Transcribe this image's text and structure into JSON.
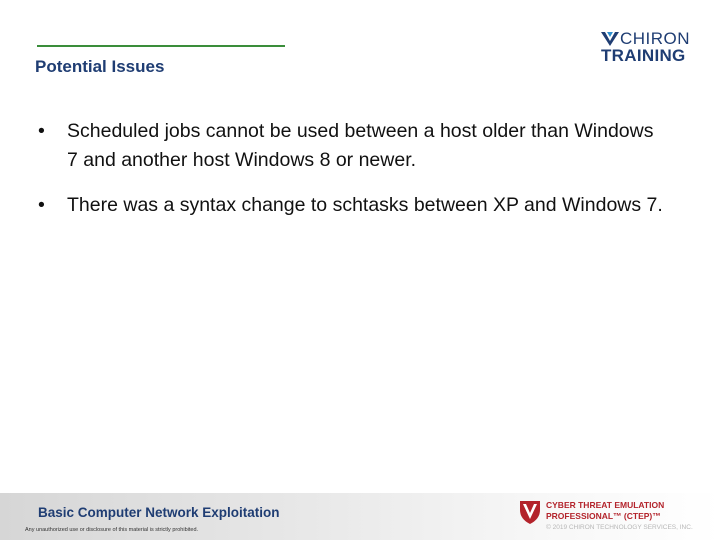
{
  "slide": {
    "title": "Potential Issues",
    "bullets": [
      "Scheduled jobs cannot be used between a host older than Windows 7 and another host Windows 8 or newer.",
      "There was a syntax change to schtasks between XP and Windows 7."
    ],
    "bullet_glyph": "•"
  },
  "logo": {
    "line1": "CHIRON",
    "line2": "TRAINING",
    "icon": "chiron-logo-icon"
  },
  "footer": {
    "course_title": "Basic Computer Network Exploitation",
    "disclaimer": "Any unauthorized use or disclosure of this material is strictly prohibited.",
    "program_line1": "CYBER THREAT EMULATION",
    "program_line2": "PROFESSIONAL™ (CTEP)™",
    "copyright": "© 2019 CHIRON TECHNOLOGY SERVICES, INC."
  },
  "colors": {
    "navy": "#1f3d73",
    "green_rule": "#3a8d3a",
    "ctep_red": "#b3232b",
    "logo_blue": "#2f8fd0"
  }
}
